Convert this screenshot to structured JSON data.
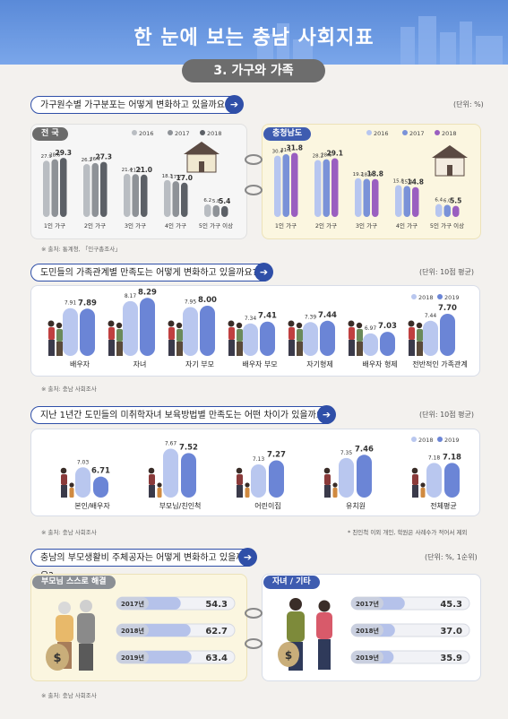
{
  "header": {
    "title": "한 눈에 보는 충남 사회지표",
    "section": "3. 가구와 가족"
  },
  "colors": {
    "y2016": "#b9bdc2",
    "y2017": "#8e9297",
    "y2018": "#5c6066",
    "c2016": "#b7c6f0",
    "c2017": "#7a92d8",
    "c2018": "#9a5fc0",
    "s2018": "#b9c7ef",
    "s2019": "#6b85d6"
  },
  "section1": {
    "question": "가구원수별 가구분포는 어떻게 변화하고 있을까요?",
    "unit": "(단위: %)",
    "source": "※ 출처: 통계청, 「인구총조사」",
    "legend": [
      "2016",
      "2017",
      "2018"
    ],
    "chart_data": [
      {
        "type": "bar",
        "title": "전 국",
        "categories": [
          "1인 가구",
          "2인 가구",
          "3인 가구",
          "4인 가구",
          "5인 가구 이상"
        ],
        "series": [
          {
            "name": "2016",
            "values": [
              27.9,
              26.2,
              21.4,
              18.3,
              6.2
            ]
          },
          {
            "name": "2017",
            "values": [
              28.6,
              26.7,
              21.2,
              17.7,
              5.8
            ]
          },
          {
            "name": "2018",
            "values": [
              29.3,
              27.3,
              21.0,
              17.0,
              5.4
            ]
          }
        ]
      },
      {
        "type": "bar",
        "title": "충청남도",
        "categories": [
          "1인 가구",
          "2인 가구",
          "3인 가구",
          "4인 가구",
          "5인 가구 이상"
        ],
        "series": [
          {
            "name": "2016",
            "values": [
              30.4,
              28.2,
              19.2,
              15.8,
              6.4
            ]
          },
          {
            "name": "2017",
            "values": [
              31.1,
              28.6,
              18.9,
              15.4,
              6.0
            ]
          },
          {
            "name": "2018",
            "values": [
              31.8,
              29.1,
              18.8,
              14.8,
              5.5
            ]
          }
        ]
      }
    ]
  },
  "section2": {
    "question": "도민들의 가족관계별 만족도는 어떻게 변화하고 있을까요?",
    "unit": "(단위: 10점 평균)",
    "source": "※ 출처: 충남 사회조사",
    "legend": [
      "2018",
      "2019"
    ],
    "chart_data": {
      "type": "bar",
      "categories": [
        "배우자",
        "자녀",
        "자기 부모",
        "배우자 부모",
        "자기형제",
        "배우자 형제",
        "전반적인 가족관계"
      ],
      "series": [
        {
          "name": "2018",
          "values": [
            7.91,
            8.17,
            7.95,
            7.34,
            7.39,
            6.97,
            7.44
          ]
        },
        {
          "name": "2019",
          "values": [
            7.89,
            8.29,
            8.0,
            7.41,
            7.44,
            7.03,
            7.7
          ]
        }
      ]
    }
  },
  "section3": {
    "question": "지난 1년간 도민들의 미취학자녀 보육방법별 만족도는 어떤 차이가 있을까요?",
    "unit": "(단위: 10점 평균)",
    "source": "※ 출처: 충남 사회조사",
    "note": "* 친인척 이외 개인, 학원은 사례수가 적어서 제외",
    "legend": [
      "2018",
      "2019"
    ],
    "chart_data": {
      "type": "bar",
      "categories": [
        "본인/배우자",
        "부모님/친인척",
        "어린이집",
        "유치원",
        "전체평균"
      ],
      "series": [
        {
          "name": "2018",
          "values": [
            7.03,
            7.67,
            7.13,
            7.35,
            7.18
          ]
        },
        {
          "name": "2019",
          "values": [
            6.71,
            7.52,
            7.27,
            7.46,
            7.18
          ]
        }
      ]
    }
  },
  "section4": {
    "question": "충남의 부모생활비 주체공자는 어떻게 변화하고 있을까요?",
    "unit": "(단위: %, 1순위)",
    "source": "※ 출처: 충남 사회조사",
    "chart_data": [
      {
        "type": "bar",
        "title": "부모님 스스로 해결",
        "categories": [
          "2017년",
          "2018년",
          "2019년"
        ],
        "values": [
          54.3,
          62.7,
          63.4
        ]
      },
      {
        "type": "bar",
        "title": "자녀 / 기타",
        "categories": [
          "2017년",
          "2018년",
          "2019년"
        ],
        "values": [
          45.3,
          37.0,
          35.9
        ]
      }
    ]
  }
}
